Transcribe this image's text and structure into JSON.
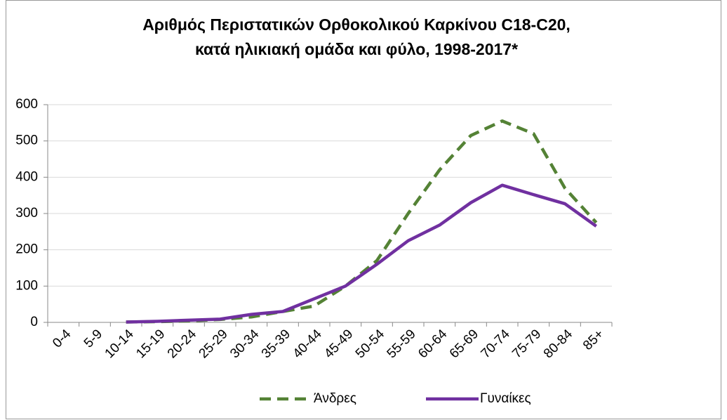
{
  "chart_data": {
    "type": "line",
    "title": "Αριθμός Περιστατικών Ορθοκολικού Καρκίνου C18-C20,",
    "subtitle": "κατά ηλικιακή ομάδα και φύλο, 1998-2017*",
    "categories": [
      "0-4",
      "5-9",
      "10-14",
      "15-19",
      "20-24",
      "25-29",
      "30-34",
      "35-39",
      "40-44",
      "45-49",
      "50-54",
      "55-59",
      "60-64",
      "65-69",
      "70-74",
      "75-79",
      "80-84",
      "85+"
    ],
    "series": [
      {
        "name": "Άνδρες",
        "color": "#548235",
        "dashed": true,
        "values": [
          null,
          null,
          1,
          2,
          4,
          8,
          15,
          30,
          45,
          100,
          170,
          300,
          420,
          515,
          555,
          520,
          370,
          275
        ]
      },
      {
        "name": "Γυναίκες",
        "color": "#7030a0",
        "dashed": false,
        "values": [
          null,
          null,
          1,
          3,
          6,
          9,
          22,
          30,
          65,
          100,
          160,
          225,
          268,
          330,
          378,
          352,
          327,
          265
        ]
      }
    ],
    "ylim": [
      0,
      600
    ],
    "yticks": [
      0,
      100,
      200,
      300,
      400,
      500,
      600
    ],
    "grid": true,
    "legend": "bottom"
  }
}
